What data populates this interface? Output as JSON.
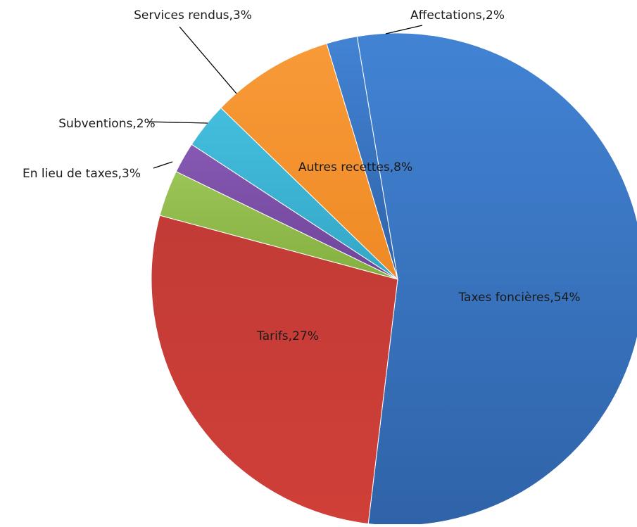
{
  "chart_data": {
    "type": "pie",
    "slices": [
      {
        "label": "Taxes foncières",
        "value": 54,
        "display": "Taxes foncières,54%",
        "color": "#3B78C8"
      },
      {
        "label": "Tarifs",
        "value": 27,
        "display": "Tarifs,27%",
        "color": "#C83A36"
      },
      {
        "label": "En lieu de taxes",
        "value": 3,
        "display": "En lieu de taxes,3%",
        "color": "#8DBA48"
      },
      {
        "label": "Subventions",
        "value": 2,
        "display": "Subventions,2%",
        "color": "#7B4FA6"
      },
      {
        "label": "Services rendus",
        "value": 3,
        "display": "Services rendus,3%",
        "color": "#3CB2D2"
      },
      {
        "label": "Autres recettes",
        "value": 8,
        "display": "Autres recettes,8%",
        "color": "#F5922F"
      },
      {
        "label": "Affectations",
        "value": 2,
        "display": "Affectations,2%",
        "color": "#3B78C8"
      }
    ],
    "legend": "none",
    "labels_position": "on-slices-and-leader-lines"
  }
}
